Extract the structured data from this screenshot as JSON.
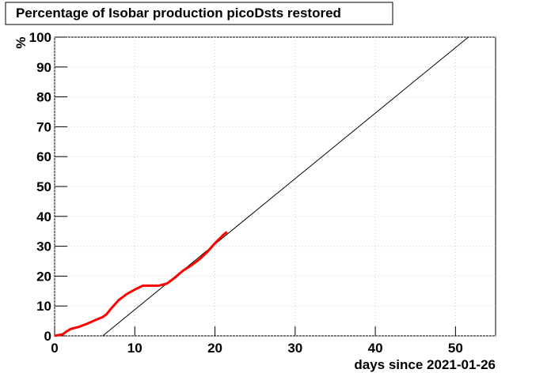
{
  "chart_data": {
    "type": "line",
    "title": "Percentage of Isobar production picoDsts restored",
    "xlabel": "days since 2021-01-26",
    "ylabel": "%",
    "xlim": [
      0,
      55
    ],
    "ylim": [
      0,
      100
    ],
    "xticks": [
      0,
      10,
      20,
      30,
      40,
      50
    ],
    "yticks": [
      0,
      10,
      20,
      30,
      40,
      50,
      60,
      70,
      80,
      90,
      100
    ],
    "grid": true,
    "series": [
      {
        "color": "#000000",
        "width": 1,
        "x": [
          6.0,
          51.6
        ],
        "values": [
          0,
          100
        ]
      },
      {
        "color": "#ff0000",
        "width": 3,
        "x": [
          0,
          1,
          1.5,
          2,
          3,
          4,
          5,
          6,
          6.5,
          7,
          7.5,
          8,
          9,
          10,
          11,
          12,
          13,
          14,
          15,
          16,
          17,
          18,
          19,
          20,
          21,
          21.5
        ],
        "values": [
          0,
          0.5,
          1.5,
          2.3,
          3,
          4,
          5.2,
          6.3,
          7.3,
          9,
          10.5,
          12,
          14,
          15.5,
          16.8,
          16.8,
          16.8,
          17.5,
          19.5,
          21.8,
          23.5,
          25.5,
          28,
          31,
          33.7,
          34.8
        ]
      }
    ]
  }
}
